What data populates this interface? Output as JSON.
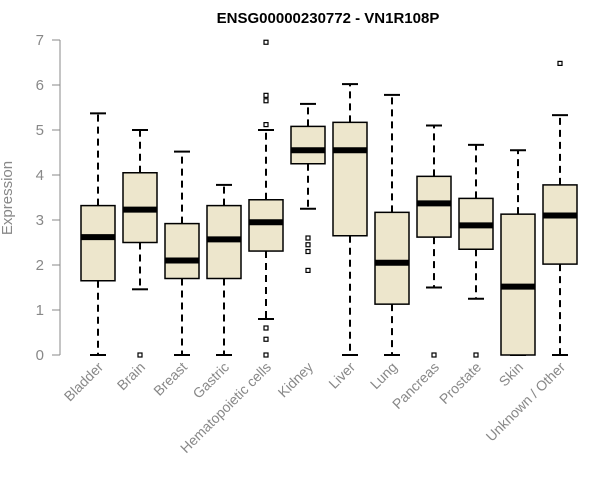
{
  "chart_data": {
    "type": "boxplot",
    "title": "ENSG00000230772 - VN1R108P",
    "xlabel": "",
    "ylabel": "Expression",
    "ylim": [
      0,
      7
    ],
    "yticks": [
      0,
      1,
      2,
      3,
      4,
      5,
      6,
      7
    ],
    "grid": false,
    "box_fill": "#ede6cc",
    "categories": [
      "Bladder",
      "Brain",
      "Breast",
      "Gastric",
      "Hematopoietic cells",
      "Kidney",
      "Liver",
      "Lung",
      "Pancreas",
      "Prostate",
      "Skin",
      "Unknown / Other"
    ],
    "boxes": [
      {
        "name": "Bladder",
        "min": 0,
        "q1": 1.65,
        "median": 2.62,
        "q3": 3.32,
        "max": 5.37,
        "outliers": []
      },
      {
        "name": "Brain",
        "min": 1.46,
        "q1": 2.5,
        "median": 3.23,
        "q3": 4.05,
        "max": 5.0,
        "outliers": [
          0
        ]
      },
      {
        "name": "Breast",
        "min": 0,
        "q1": 1.7,
        "median": 2.1,
        "q3": 2.92,
        "max": 4.52,
        "outliers": []
      },
      {
        "name": "Gastric",
        "min": 0,
        "q1": 1.7,
        "median": 2.57,
        "q3": 3.32,
        "max": 3.78,
        "outliers": []
      },
      {
        "name": "Hematopoietic cells",
        "min": 0.8,
        "q1": 2.31,
        "median": 2.95,
        "q3": 3.45,
        "max": 5.0,
        "outliers": [
          0,
          0.35,
          0.6,
          5.12,
          5.65,
          5.77,
          6.95
        ]
      },
      {
        "name": "Kidney",
        "min": 3.25,
        "q1": 4.25,
        "median": 4.55,
        "q3": 5.08,
        "max": 5.58,
        "outliers": [
          1.88,
          2.3,
          2.45,
          2.6
        ]
      },
      {
        "name": "Liver",
        "min": 0,
        "q1": 2.65,
        "median": 4.55,
        "q3": 5.17,
        "max": 6.02,
        "outliers": []
      },
      {
        "name": "Lung",
        "min": 0,
        "q1": 1.13,
        "median": 2.05,
        "q3": 3.17,
        "max": 5.78,
        "outliers": []
      },
      {
        "name": "Pancreas",
        "min": 1.5,
        "q1": 2.62,
        "median": 3.37,
        "q3": 3.97,
        "max": 5.1,
        "outliers": [
          0
        ]
      },
      {
        "name": "Prostate",
        "min": 1.25,
        "q1": 2.35,
        "median": 2.88,
        "q3": 3.48,
        "max": 4.67,
        "outliers": [
          0
        ]
      },
      {
        "name": "Skin",
        "min": 0,
        "q1": 0,
        "median": 1.52,
        "q3": 3.13,
        "max": 4.55,
        "outliers": []
      },
      {
        "name": "Unknown / Other",
        "min": 0,
        "q1": 2.02,
        "median": 3.1,
        "q3": 3.78,
        "max": 5.33,
        "outliers": [
          6.48
        ]
      }
    ]
  }
}
